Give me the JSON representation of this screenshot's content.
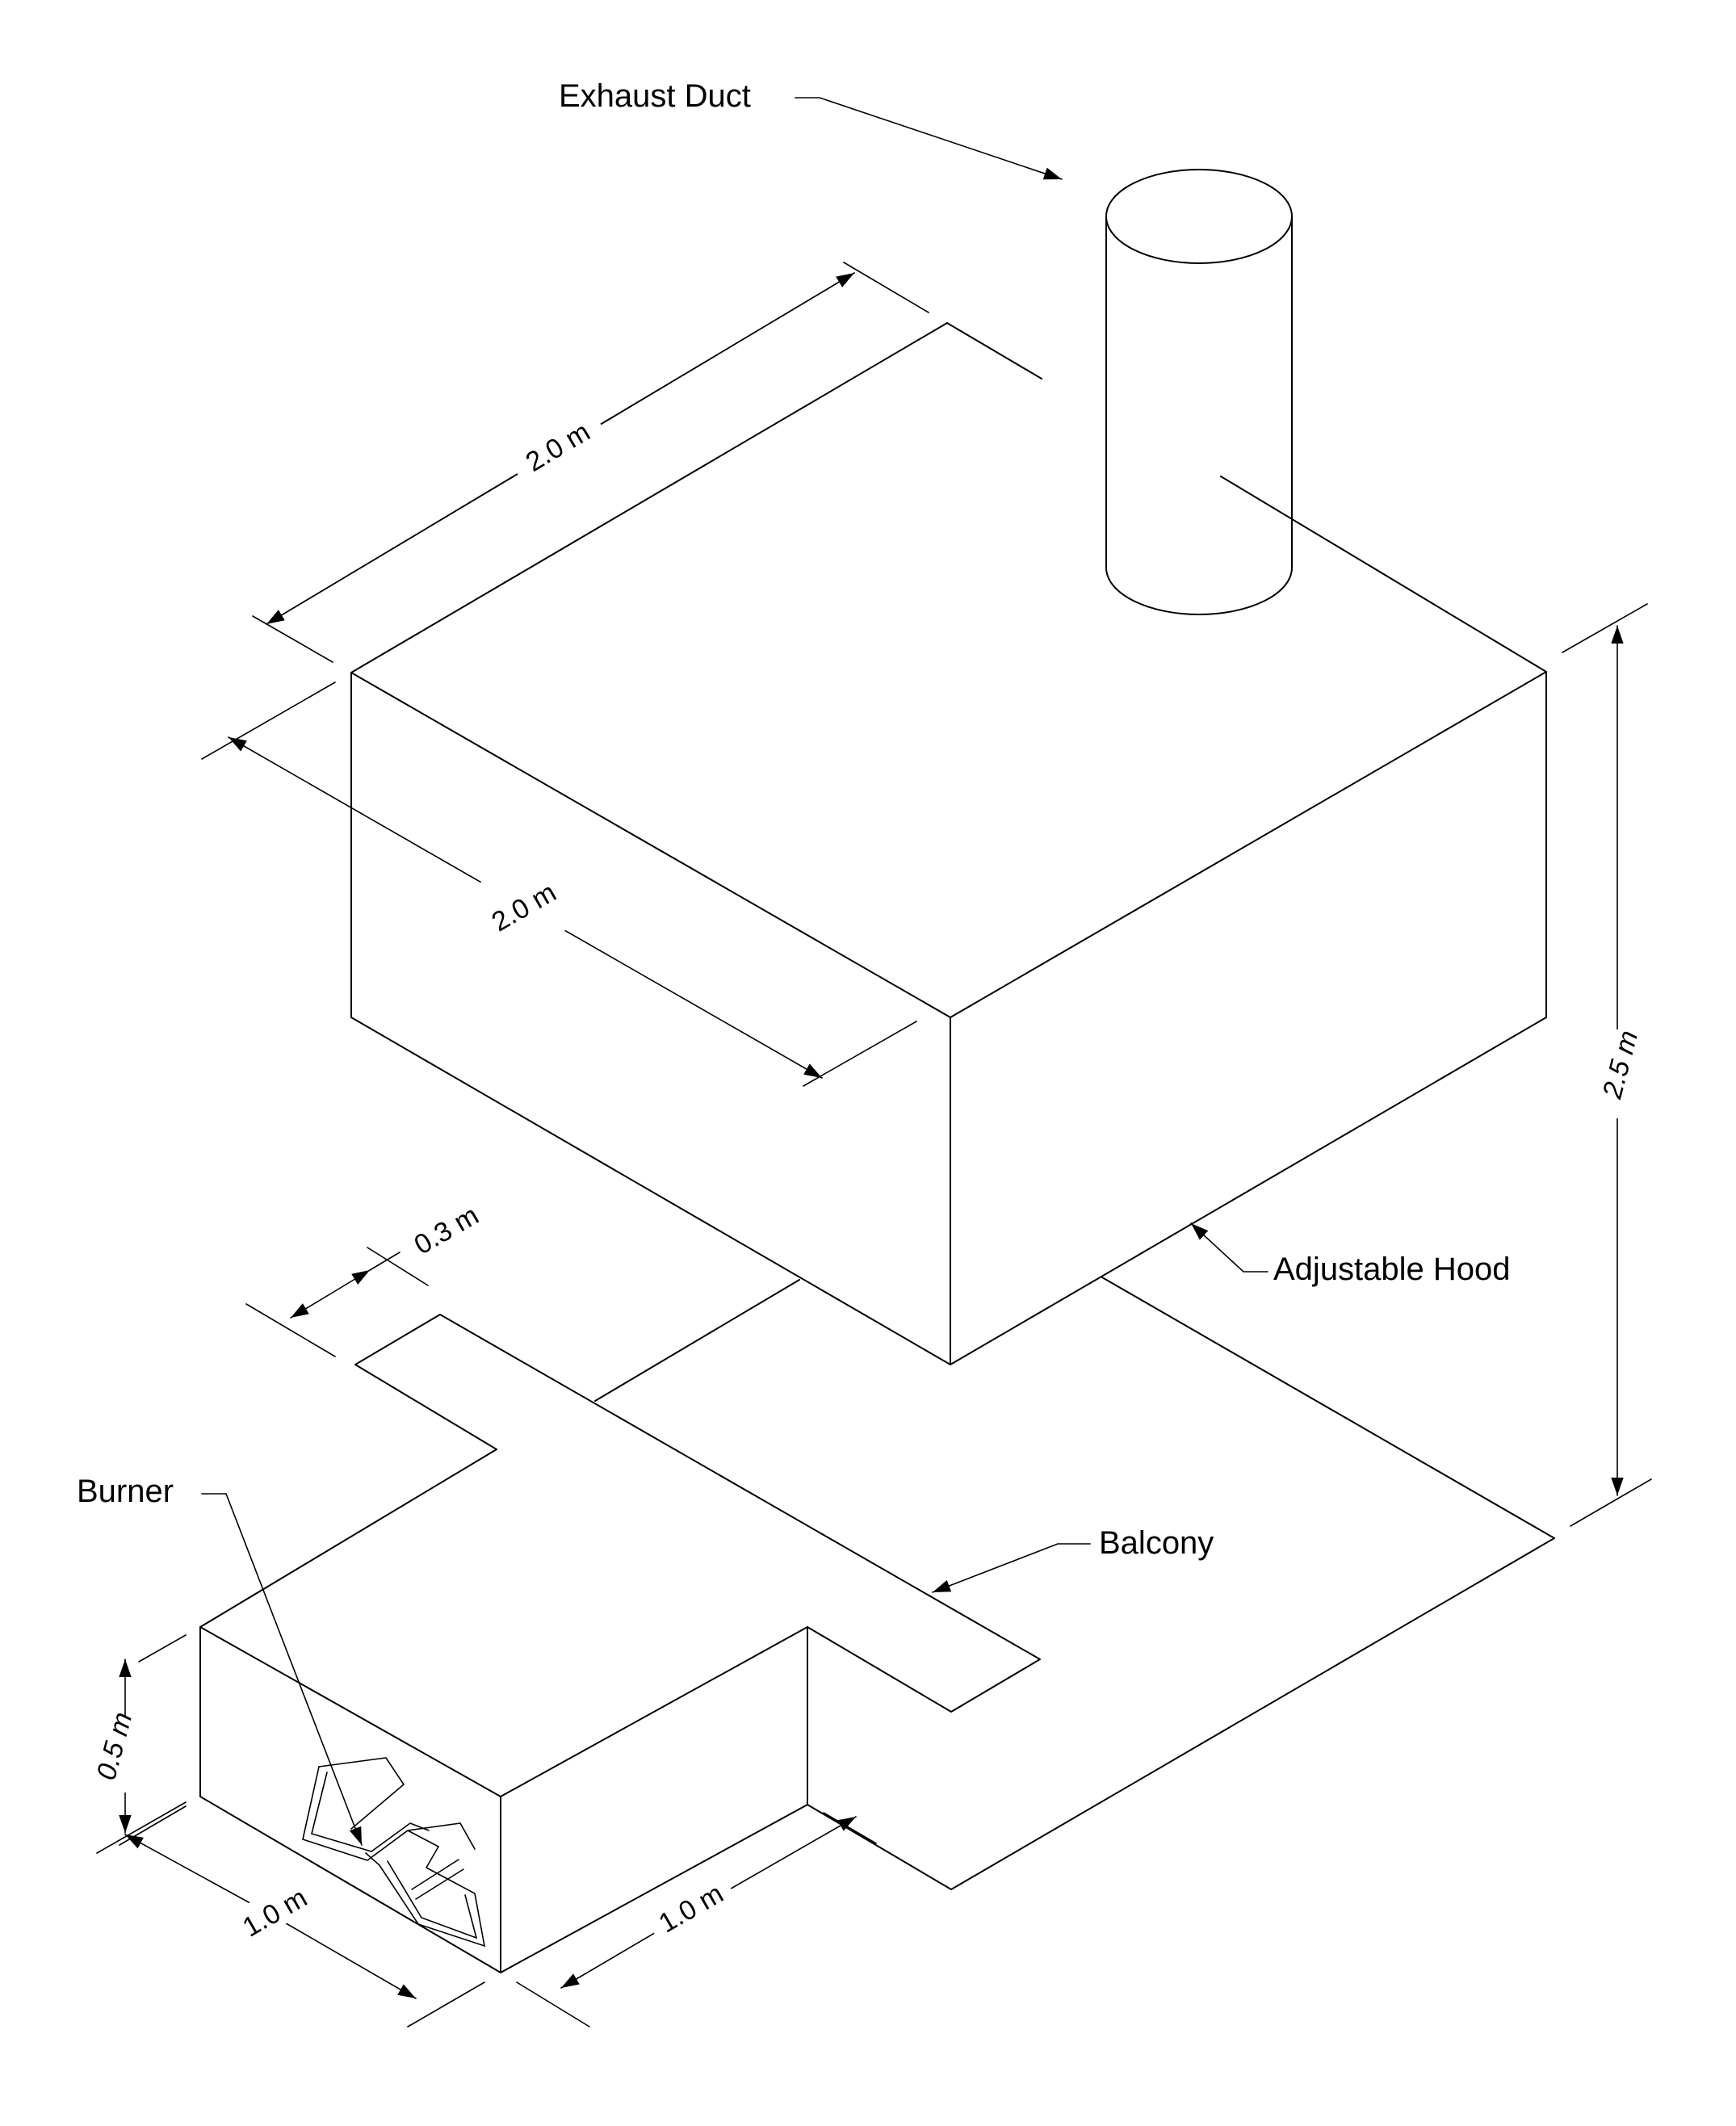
{
  "labels": {
    "exhaust_duct": "Exhaust Duct",
    "adjustable_hood": "Adjustable Hood",
    "balcony": "Balcony",
    "burner": "Burner"
  },
  "dimensions": {
    "hood_length": "2.0 m",
    "hood_width": "2.0 m",
    "total_height": "2.5 m",
    "balcony_width": "0.3 m",
    "burner_height": "0.5 m",
    "burner_width": "1.0 m",
    "burner_depth": "1.0 m"
  }
}
